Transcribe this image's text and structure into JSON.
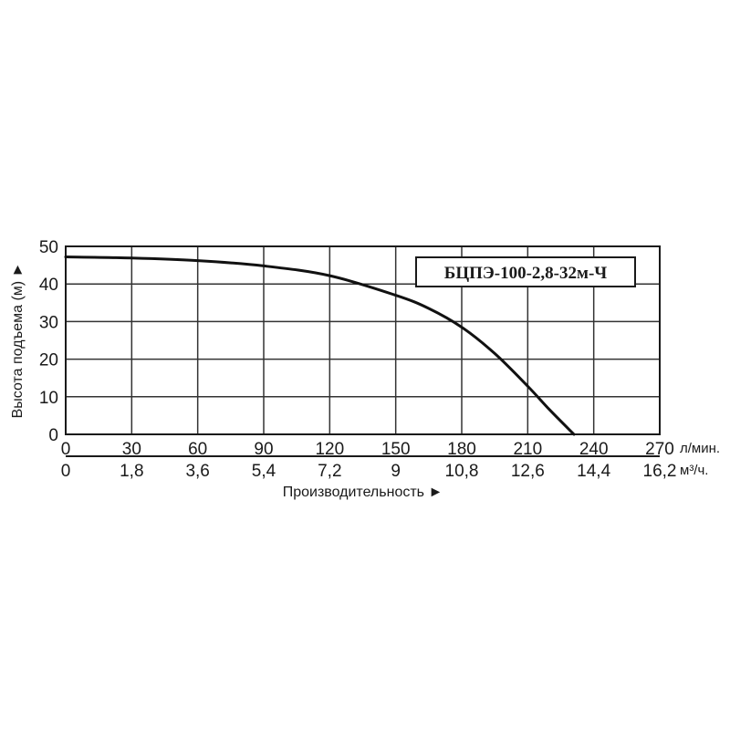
{
  "chart_data": {
    "type": "line",
    "title": "БЦПЭ-100-2,8-32м-Ч",
    "ylabel": "Высота подъема (м) ►",
    "xlabel": "Производительность ►",
    "ylim": [
      0,
      50
    ],
    "xlim": [
      0,
      270
    ],
    "y_ticks": [
      "0",
      "10",
      "20",
      "30",
      "40",
      "50"
    ],
    "x_ticks": [
      "0",
      "30",
      "60",
      "90",
      "120",
      "150",
      "180",
      "210",
      "240",
      "270"
    ],
    "x_unit": "л/мин.",
    "x2_ticks": [
      "0",
      "1,8",
      "3,6",
      "5,4",
      "7,2",
      "9",
      "10,8",
      "12,6",
      "14,4",
      "16,2"
    ],
    "x2_unit": "м³/ч.",
    "grid": true,
    "series": [
      {
        "x": [
          0,
          30,
          60,
          90,
          120,
          150,
          165,
          180,
          195,
          210,
          220,
          231
        ],
        "y": [
          47.2,
          46.9,
          46.2,
          44.8,
          42.2,
          37.0,
          33.5,
          28.5,
          21.5,
          12.8,
          6.5,
          0
        ]
      }
    ]
  }
}
